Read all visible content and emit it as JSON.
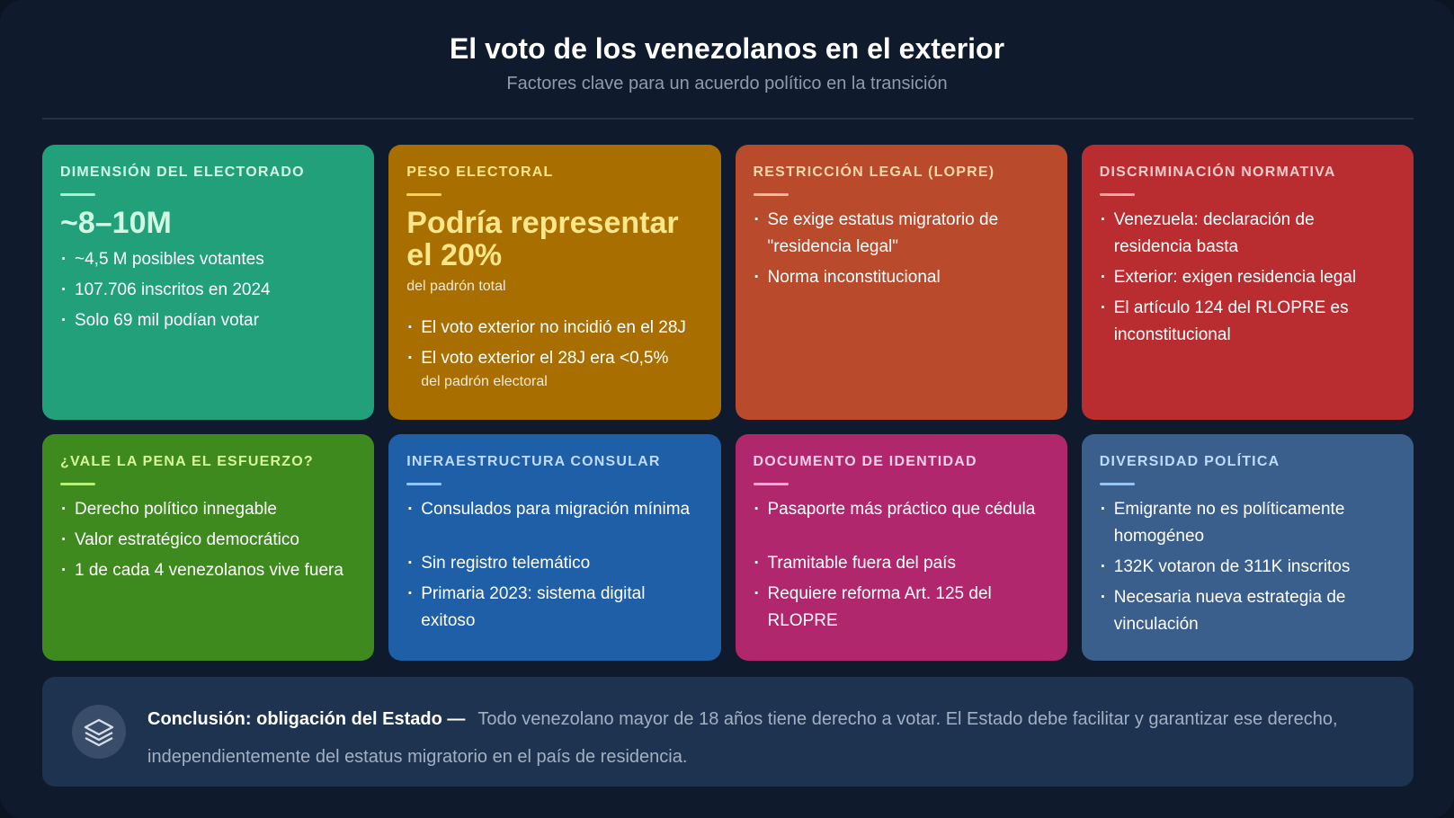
{
  "header": {
    "title": "El voto de los venezolanos en el exterior",
    "subtitle": "Factores clave para un acuerdo político en la transición"
  },
  "cards": [
    {
      "title": "Dimensión del electorado",
      "big": "~8–10M",
      "items": [
        "~4,5 M posibles votantes",
        "107.706 inscritos en 2024",
        "Solo 69 mil podían votar"
      ]
    },
    {
      "title": "Peso electoral",
      "big": "Podría representar el 20%",
      "sub": "del padrón total",
      "items": [
        "El voto exterior no incidió en el 28J",
        "El voto exterior el 28J era <0,5%"
      ],
      "item_note": "del padrón electoral"
    },
    {
      "title": "Restricción legal (LOPRE)",
      "items": [
        "Se exige estatus migratorio de \"residencia legal\"",
        "Norma inconstitucional"
      ]
    },
    {
      "title": "Discriminación normativa",
      "items": [
        "Venezuela: declaración de residencia basta",
        "Exterior: exigen residencia legal",
        "El artículo 124 del RLOPRE es inconstitucional"
      ]
    },
    {
      "title": "¿Vale la pena el esfuerzo?",
      "items": [
        "Derecho político innegable",
        "Valor estratégico democrático",
        "1 de cada 4 venezolanos vive fuera"
      ]
    },
    {
      "title": "Infraestructura consular",
      "items": [
        "Consulados para migración mínima",
        "Sin registro telemático",
        "Primaria 2023: sistema digital exitoso"
      ]
    },
    {
      "title": "Documento de identidad",
      "items": [
        "Pasaporte más práctico que cédula",
        "Tramitable fuera del país",
        "Requiere reforma Art. 125 del RLOPRE"
      ]
    },
    {
      "title": "Diversidad política",
      "items": [
        "Emigrante no es políticamente homogéneo",
        "132K votaron de 311K inscritos",
        "Necesaria nueva estrategia de vinculación"
      ]
    }
  ],
  "conclusion": {
    "label": "Conclusión: obligación del Estado —",
    "text": "Todo venezolano mayor de 18 años tiene derecho a votar. El Estado debe facilitar y garantizar ese derecho, independientemente del estatus migratorio en el país de residencia."
  }
}
